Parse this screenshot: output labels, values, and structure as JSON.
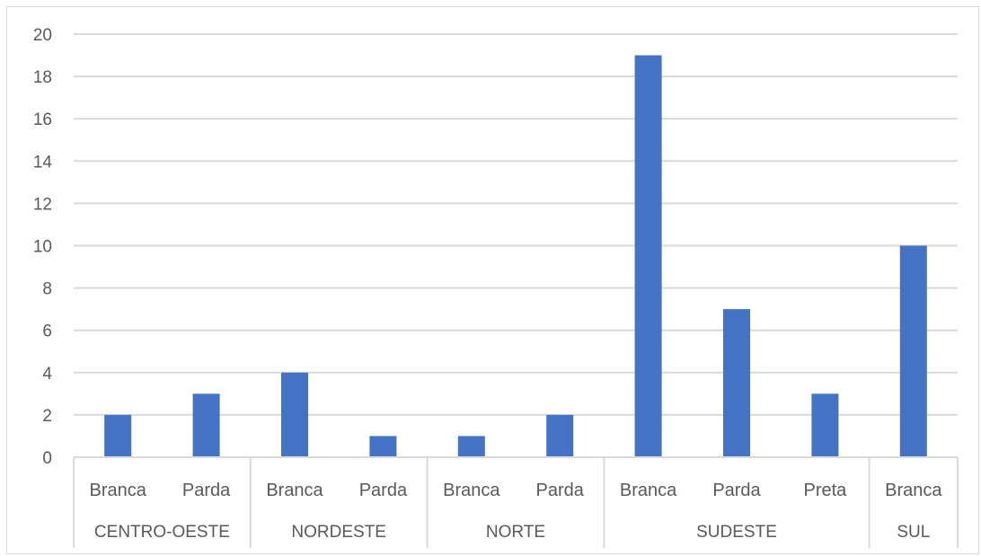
{
  "chart_data": {
    "type": "bar",
    "title": "",
    "xlabel": "",
    "ylabel": "",
    "ylim": [
      0,
      20
    ],
    "yticks": [
      0,
      2,
      4,
      6,
      8,
      10,
      12,
      14,
      16,
      18,
      20
    ],
    "grid": true,
    "legend": "none",
    "bar_color": "#4472C4",
    "groups": [
      {
        "name": "CENTRO-OESTE",
        "categories": [
          "Branca",
          "Parda"
        ],
        "values": [
          2,
          3
        ]
      },
      {
        "name": "NORDESTE",
        "categories": [
          "Branca",
          "Parda"
        ],
        "values": [
          4,
          1
        ]
      },
      {
        "name": "NORTE",
        "categories": [
          "Branca",
          "Parda"
        ],
        "values": [
          1,
          2
        ]
      },
      {
        "name": "SUDESTE",
        "categories": [
          "Branca",
          "Parda",
          "Preta"
        ],
        "values": [
          19,
          7,
          3
        ]
      },
      {
        "name": "SUL",
        "categories": [
          "Branca"
        ],
        "values": [
          10
        ]
      }
    ]
  }
}
